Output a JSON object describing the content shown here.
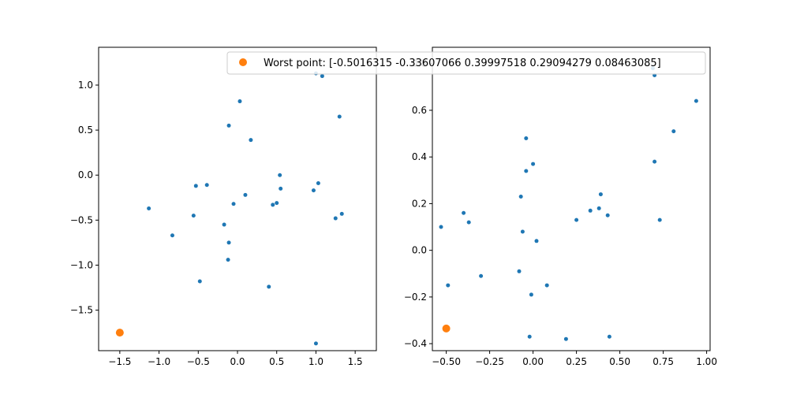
{
  "chart_data": [
    {
      "type": "scatter",
      "title": "",
      "xlabel": "",
      "ylabel": "",
      "xlim": [
        -1.77,
        1.77
      ],
      "ylim": [
        -1.95,
        1.42
      ],
      "xticks": [
        -1.5,
        -1.0,
        -0.5,
        0.0,
        0.5,
        1.0,
        1.5
      ],
      "xtick_labels": [
        "−1.5",
        "−1.0",
        "−0.5",
        "0.0",
        "0.5",
        "1.0",
        "1.5"
      ],
      "yticks": [
        -1.5,
        -1.0,
        -0.5,
        0.0,
        0.5,
        1.0
      ],
      "ytick_labels": [
        "−1.5",
        "−1.0",
        "−0.5",
        "0.0",
        "0.5",
        "1.0"
      ],
      "grid": false,
      "series": [
        {
          "color": "#1f77b4",
          "points": [
            [
              1.0,
              1.13
            ],
            [
              1.08,
              1.1
            ],
            [
              0.03,
              0.82
            ],
            [
              -0.11,
              0.55
            ],
            [
              1.3,
              0.65
            ],
            [
              0.17,
              0.39
            ],
            [
              0.54,
              0.0
            ],
            [
              -0.53,
              -0.12
            ],
            [
              -0.39,
              -0.11
            ],
            [
              0.55,
              -0.15
            ],
            [
              1.03,
              -0.09
            ],
            [
              0.97,
              -0.17
            ],
            [
              0.1,
              -0.22
            ],
            [
              -1.13,
              -0.37
            ],
            [
              -0.05,
              -0.32
            ],
            [
              0.45,
              -0.33
            ],
            [
              0.5,
              -0.31
            ],
            [
              -0.56,
              -0.45
            ],
            [
              1.33,
              -0.43
            ],
            [
              1.25,
              -0.48
            ],
            [
              -0.17,
              -0.55
            ],
            [
              -0.83,
              -0.67
            ],
            [
              -0.11,
              -0.75
            ],
            [
              -0.12,
              -0.94
            ],
            [
              -0.48,
              -1.18
            ],
            [
              0.4,
              -1.24
            ],
            [
              1.0,
              -1.87
            ]
          ]
        },
        {
          "color": "#ff7f0e",
          "points": [
            [
              -1.5,
              -1.75
            ]
          ]
        }
      ]
    },
    {
      "type": "scatter",
      "title": "",
      "xlabel": "",
      "ylabel": "",
      "xlim": [
        -0.58,
        1.02
      ],
      "ylim": [
        -0.43,
        0.87
      ],
      "xticks": [
        -0.5,
        -0.25,
        0.0,
        0.25,
        0.5,
        0.75,
        1.0
      ],
      "xtick_labels": [
        "−0.50",
        "−0.25",
        "0.00",
        "0.25",
        "0.50",
        "0.75",
        "1.00"
      ],
      "yticks": [
        -0.4,
        -0.2,
        0.0,
        0.2,
        0.4,
        0.6,
        0.8
      ],
      "ytick_labels": [
        "−0.4",
        "−0.2",
        "0.0",
        "0.2",
        "0.4",
        "0.6",
        "0.8"
      ],
      "grid": false,
      "legend": {
        "placement": "upper-right",
        "entries": [
          {
            "label": "Worst point: [-0.5016315  -0.33607066  0.39997518  0.29094279  0.08463085]",
            "color": "#ff7f0e"
          }
        ]
      },
      "series": [
        {
          "color": "#1f77b4",
          "points": [
            [
              0.69,
              0.78
            ],
            [
              0.7,
              0.75
            ],
            [
              0.94,
              0.64
            ],
            [
              0.81,
              0.51
            ],
            [
              -0.04,
              0.48
            ],
            [
              0.7,
              0.38
            ],
            [
              0.0,
              0.37
            ],
            [
              -0.04,
              0.34
            ],
            [
              -0.07,
              0.23
            ],
            [
              0.39,
              0.24
            ],
            [
              0.33,
              0.17
            ],
            [
              0.38,
              0.18
            ],
            [
              0.43,
              0.15
            ],
            [
              -0.4,
              0.16
            ],
            [
              -0.37,
              0.12
            ],
            [
              0.25,
              0.13
            ],
            [
              0.73,
              0.13
            ],
            [
              -0.53,
              0.1
            ],
            [
              -0.06,
              0.08
            ],
            [
              0.02,
              0.04
            ],
            [
              -0.3,
              -0.11
            ],
            [
              -0.08,
              -0.09
            ],
            [
              -0.49,
              -0.15
            ],
            [
              0.08,
              -0.15
            ],
            [
              -0.01,
              -0.19
            ],
            [
              -0.02,
              -0.37
            ],
            [
              0.19,
              -0.38
            ],
            [
              0.44,
              -0.37
            ]
          ]
        },
        {
          "color": "#ff7f0e",
          "points": [
            [
              -0.5,
              -0.335
            ]
          ]
        }
      ]
    }
  ]
}
